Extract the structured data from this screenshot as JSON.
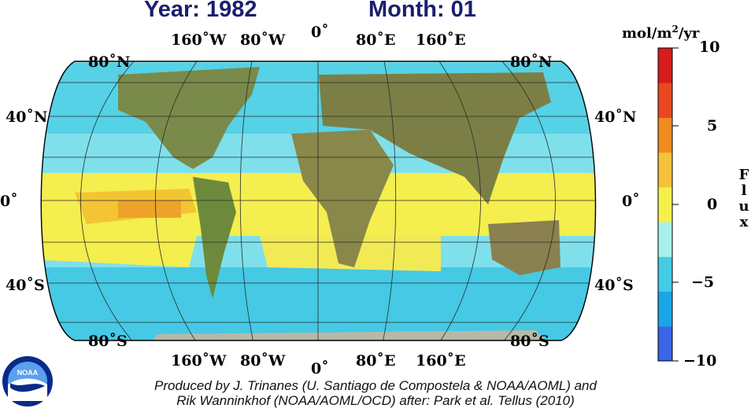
{
  "header": {
    "year_text": "Year: 1982",
    "month_text": "Month: 01"
  },
  "map": {
    "top_lon_labels": [
      "160˚W",
      "80˚W",
      "0˚",
      "80˚E",
      "160˚E"
    ],
    "bottom_lon_labels": [
      "160˚W",
      "80˚W",
      "0˚",
      "80˚E",
      "160˚E"
    ],
    "lat_labels_left": [
      "80˚N",
      "40˚N",
      "0˚",
      "40˚S",
      "80˚S"
    ],
    "lat_labels_right": [
      "80˚N",
      "40˚N",
      "0˚",
      "40˚S",
      "80˚S"
    ]
  },
  "colorbar": {
    "unit_base": "mol/m",
    "unit_exp": "2",
    "unit_tail": "/yr",
    "variable_label": "Flux",
    "ticks": [
      "10",
      "5",
      "0",
      "−5",
      "−10"
    ],
    "colors": [
      "#3a66e8",
      "#1aa6e6",
      "#43cce6",
      "#a8f0ea",
      "#f6f04a",
      "#f5c23a",
      "#f08b20",
      "#e84820",
      "#d81c1c"
    ]
  },
  "logo": {
    "text": "NOAA"
  },
  "credits": {
    "line1": "Produced by J. Trinanes (U. Santiago de Compostela & NOAA/AOML) and",
    "line2": "Rik Wanninkhof (NOAA/AOML/OCD) after: Park et al. Tellus (2010)"
  }
}
